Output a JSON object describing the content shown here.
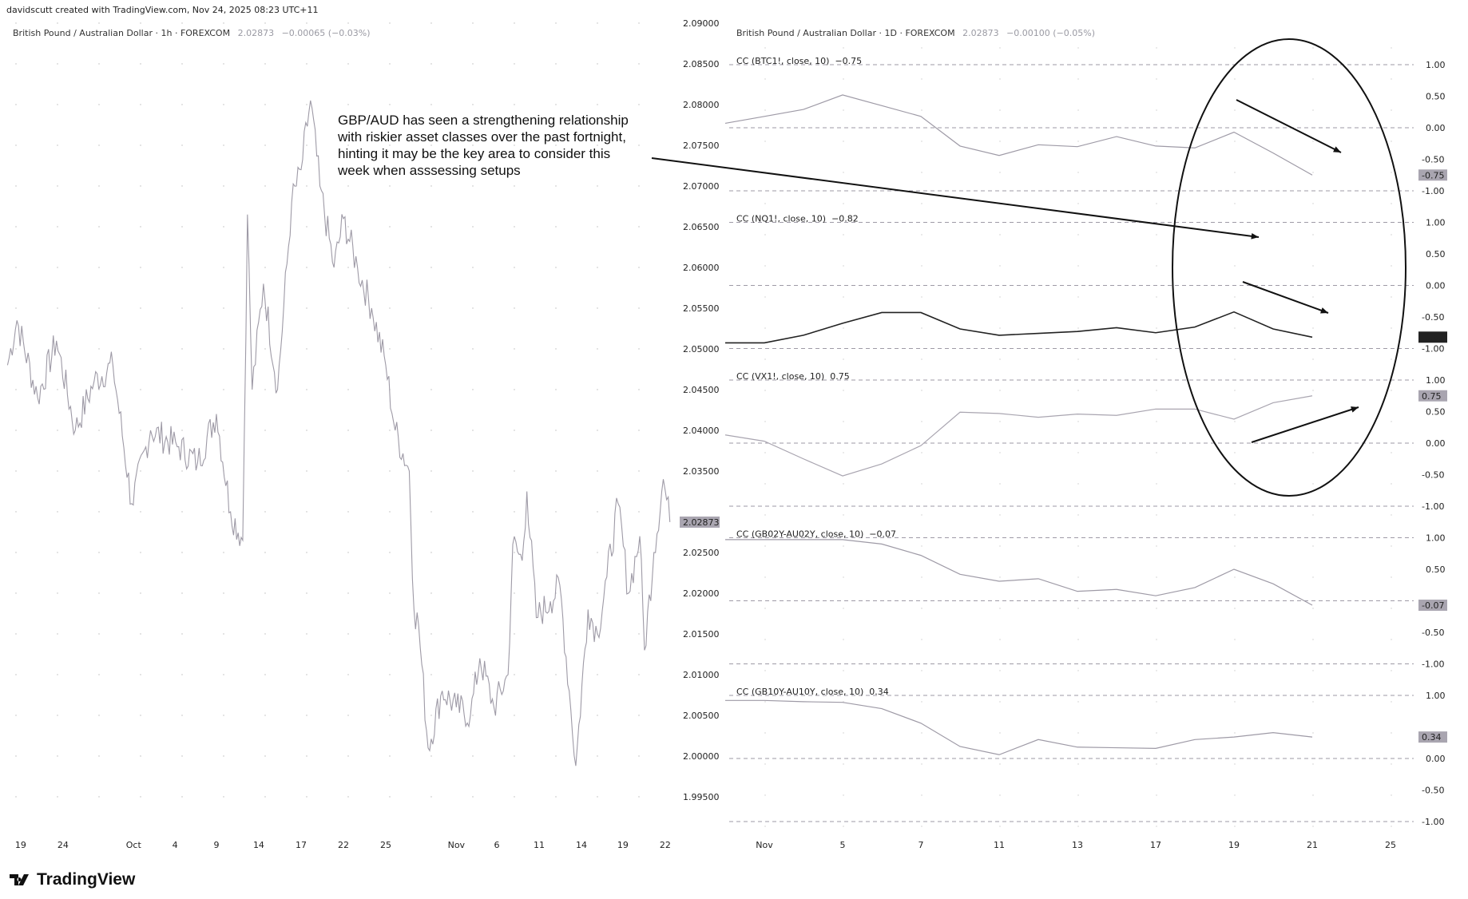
{
  "header": {
    "credit": "davidscutt created with TradingView.com, Nov 24, 2025 08:23 UTC+11"
  },
  "left_chart": {
    "legend": {
      "symbol": "British Pound / Australian Dollar · 1h · FOREXCOM",
      "price": "2.02873",
      "change": "−0.00065 (−0.03%)"
    },
    "last_price_badge": "2.02873",
    "price_axis": [
      "2.09000",
      "2.08500",
      "2.08000",
      "2.07500",
      "2.07000",
      "2.06500",
      "2.06000",
      "2.05500",
      "2.05000",
      "2.04500",
      "2.04000",
      "2.03500",
      "2.03000",
      "2.02500",
      "2.02000",
      "2.01500",
      "2.01000",
      "2.00500",
      "2.00000",
      "1.99500"
    ],
    "date_axis": [
      "19",
      "24",
      "Oct",
      "4",
      "9",
      "14",
      "17",
      "22",
      "25",
      "Nov",
      "6",
      "11",
      "14",
      "19",
      "22"
    ]
  },
  "annotation": {
    "lines": [
      "GBP/AUD has seen a strengthening relationship",
      "with riskier asset classes over the past fortnight,",
      "hinting it may be the key area to consider this",
      "week when asssessing setups"
    ]
  },
  "right_chart": {
    "legend": {
      "symbol": "British Pound / Australian Dollar · 1D · FOREXCOM",
      "price": "2.02873",
      "change": "−0.00100 (−0.05%)"
    },
    "date_axis": [
      "Nov",
      "5",
      "7",
      "11",
      "13",
      "17",
      "19",
      "21",
      "25"
    ],
    "pane_axis": [
      "1.00",
      "0.50",
      "0.00",
      "-0.50",
      "-1.00"
    ],
    "panes": [
      {
        "label": "CC (BTC1!, close, 10)",
        "value": "−0.75",
        "badge": "-0.75",
        "color": "#9e9aa6",
        "badge_bg": "#a9a5b0"
      },
      {
        "label": "CC (NQ1!, close, 10)",
        "value": "−0.82",
        "badge": "-0.82",
        "color": "#222222",
        "badge_bg": "#222222"
      },
      {
        "label": "CC (VX1!, close, 10)",
        "value": "0.75",
        "badge": "0.75",
        "color": "#a9a5b0",
        "badge_bg": "#a9a5b0"
      },
      {
        "label": "CC (GB02Y-AU02Y, close, 10)",
        "value": "−0.07",
        "badge": "-0.07",
        "color": "#9e9aa6",
        "badge_bg": "#a9a5b0"
      },
      {
        "label": "CC (GB10Y-AU10Y, close, 10)",
        "value": "0.34",
        "badge": "0.34",
        "color": "#9e9aa6",
        "badge_bg": "#a9a5b0"
      }
    ]
  },
  "chart_data": [
    {
      "type": "line",
      "title": "British Pound / Australian Dollar · 1h · FOREXCOM",
      "ylim": [
        1.995,
        2.09
      ],
      "points": [
        [
          "Sep 18",
          2.048
        ],
        [
          "Sep 19",
          2.0535
        ],
        [
          "Sep 22",
          2.044
        ],
        [
          "Sep 24",
          2.051
        ],
        [
          "Sep 26",
          2.04
        ],
        [
          "Sep 29",
          2.046
        ],
        [
          "Sep 30",
          2.048
        ],
        [
          "Oct 1",
          2.031
        ],
        [
          "Oct 3",
          2.04
        ],
        [
          "Oct 6",
          2.038
        ],
        [
          "Oct 7",
          2.036
        ],
        [
          "Oct 9",
          2.042
        ],
        [
          "Oct 10",
          2.03
        ],
        [
          "Oct 13",
          2.0265
        ],
        [
          "Oct 13",
          2.0665
        ],
        [
          "Oct 14",
          2.045
        ],
        [
          "Oct 15",
          2.058
        ],
        [
          "Oct 16",
          2.045
        ],
        [
          "Oct 17",
          2.068
        ],
        [
          "Oct 19",
          2.072
        ],
        [
          "Oct 20",
          2.0805
        ],
        [
          "Oct 21",
          2.07
        ],
        [
          "Oct 22",
          2.06
        ],
        [
          "Oct 23",
          2.066
        ],
        [
          "Oct 24",
          2.06
        ],
        [
          "Oct 26",
          2.055
        ],
        [
          "Oct 27",
          2.048
        ],
        [
          "Oct 28",
          2.04
        ],
        [
          "Oct 29",
          2.035
        ],
        [
          "Oct 30",
          2.018
        ],
        [
          "Oct 31",
          2.016
        ],
        [
          "Nov 1",
          2.001
        ],
        [
          "Nov 3",
          2.008
        ],
        [
          "Nov 4",
          2.006
        ],
        [
          "Nov 5",
          2.005
        ],
        [
          "Nov 6",
          2.012
        ],
        [
          "Nov 7",
          2.006
        ],
        [
          "Nov 9",
          2.01
        ],
        [
          "Nov 10",
          2.026
        ],
        [
          "Nov 10",
          2.024
        ],
        [
          "Nov 11",
          2.0325
        ],
        [
          "Nov 12",
          2.017
        ],
        [
          "Nov 13",
          2.019
        ],
        [
          "Nov 14",
          2.021
        ],
        [
          "Nov 14",
          2.008
        ],
        [
          "Nov 15",
          1.9988
        ],
        [
          "Nov 16",
          2.018
        ],
        [
          "Nov 17",
          2.015
        ],
        [
          "Nov 18",
          2.022
        ],
        [
          "Nov 19",
          2.031
        ],
        [
          "Nov 20",
          2.02
        ],
        [
          "Nov 20",
          2.027
        ],
        [
          "Nov 21",
          2.013
        ],
        [
          "Nov 21",
          2.025
        ],
        [
          "Nov 22",
          2.034
        ],
        [
          "Nov 22",
          2.02873
        ]
      ]
    },
    {
      "type": "line",
      "title": "British Pound / Australian Dollar · 1D · FOREXCOM",
      "x": [
        "Oct 31",
        "Nov 3",
        "Nov 4",
        "Nov 5",
        "Nov 6",
        "Nov 7",
        "Nov 10",
        "Nov 11",
        "Nov 12",
        "Nov 13",
        "Nov 14",
        "Nov 17",
        "Nov 18",
        "Nov 19",
        "Nov 20",
        "Nov 21"
      ],
      "ylim": [
        -1,
        1
      ],
      "series": [
        {
          "name": "CC (BTC1!, close, 10)",
          "values": [
            0.07,
            0.18,
            0.29,
            0.52,
            0.35,
            0.18,
            -0.29,
            -0.44,
            -0.27,
            -0.3,
            -0.14,
            -0.29,
            -0.32,
            -0.07,
            -0.4,
            -0.75
          ]
        },
        {
          "name": "CC (NQ1!, close, 10)",
          "values": [
            -0.91,
            -0.91,
            -0.79,
            -0.6,
            -0.43,
            -0.43,
            -0.69,
            -0.79,
            -0.76,
            -0.73,
            -0.67,
            -0.75,
            -0.66,
            -0.42,
            -0.69,
            -0.82
          ]
        },
        {
          "name": "CC (VX1!, close, 10)",
          "values": [
            0.13,
            0.03,
            -0.25,
            -0.52,
            -0.33,
            -0.04,
            0.49,
            0.47,
            0.41,
            0.46,
            0.44,
            0.54,
            0.54,
            0.38,
            0.64,
            0.75
          ]
        },
        {
          "name": "CC (GB02Y-AU02Y, close, 10)",
          "values": [
            0.97,
            0.97,
            0.97,
            0.97,
            0.9,
            0.72,
            0.42,
            0.31,
            0.35,
            0.15,
            0.18,
            0.08,
            0.21,
            0.5,
            0.27,
            -0.07
          ]
        },
        {
          "name": "CC (GB10Y-AU10Y, close, 10)",
          "values": [
            0.92,
            0.92,
            0.9,
            0.89,
            0.79,
            0.56,
            0.19,
            0.06,
            0.3,
            0.18,
            0.17,
            0.16,
            0.3,
            0.34,
            0.41,
            0.34
          ]
        }
      ]
    }
  ],
  "logo": {
    "text": "TradingView"
  }
}
